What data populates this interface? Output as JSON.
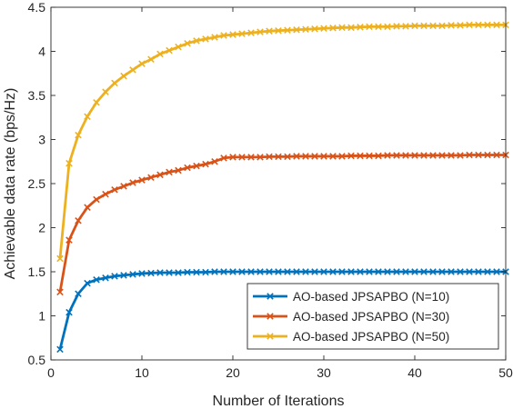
{
  "chart_data": {
    "type": "line",
    "title": "",
    "xlabel": "Number of Iterations",
    "ylabel": "Achievable data rate (bps/Hz)",
    "xlim": [
      0,
      50
    ],
    "ylim": [
      0.5,
      4.5
    ],
    "xticks": [
      0,
      10,
      20,
      30,
      40,
      50
    ],
    "yticks": [
      0.5,
      1,
      1.5,
      2,
      2.5,
      3,
      3.5,
      4,
      4.5
    ],
    "ytick_labels": [
      "0.5",
      "1",
      "1.5",
      "2",
      "2.5",
      "3",
      "3.5",
      "4",
      "4.5"
    ],
    "grid": false,
    "legend_position": "bottom-right",
    "marker": "x",
    "x": [
      1,
      2,
      3,
      4,
      5,
      6,
      7,
      8,
      9,
      10,
      11,
      12,
      13,
      14,
      15,
      16,
      17,
      18,
      19,
      20,
      21,
      22,
      23,
      24,
      25,
      26,
      27,
      28,
      29,
      30,
      31,
      32,
      33,
      34,
      35,
      36,
      37,
      38,
      39,
      40,
      41,
      42,
      43,
      44,
      45,
      46,
      47,
      48,
      49,
      50
    ],
    "series": [
      {
        "name": "AO-based JPSAPBO (N=10)",
        "color": "#0072BD",
        "values": [
          0.62,
          1.04,
          1.25,
          1.37,
          1.41,
          1.43,
          1.45,
          1.46,
          1.47,
          1.48,
          1.485,
          1.49,
          1.49,
          1.49,
          1.495,
          1.495,
          1.495,
          1.5,
          1.5,
          1.5,
          1.5,
          1.5,
          1.5,
          1.5,
          1.5,
          1.5,
          1.5,
          1.5,
          1.5,
          1.5,
          1.5,
          1.5,
          1.5,
          1.5,
          1.5,
          1.5,
          1.5,
          1.5,
          1.5,
          1.5,
          1.5,
          1.5,
          1.5,
          1.5,
          1.5,
          1.5,
          1.5,
          1.5,
          1.5,
          1.5
        ]
      },
      {
        "name": "AO-based JPSAPBO (N=30)",
        "color": "#D95319",
        "values": [
          1.27,
          1.86,
          2.08,
          2.23,
          2.32,
          2.38,
          2.43,
          2.47,
          2.51,
          2.54,
          2.57,
          2.6,
          2.63,
          2.65,
          2.68,
          2.7,
          2.72,
          2.75,
          2.79,
          2.8,
          2.8,
          2.8,
          2.8,
          2.805,
          2.805,
          2.805,
          2.81,
          2.81,
          2.81,
          2.81,
          2.81,
          2.81,
          2.815,
          2.815,
          2.815,
          2.815,
          2.82,
          2.82,
          2.82,
          2.82,
          2.82,
          2.82,
          2.82,
          2.82,
          2.82,
          2.825,
          2.825,
          2.825,
          2.825,
          2.825
        ]
      },
      {
        "name": "AO-based JPSAPBO (N=50)",
        "color": "#EDB120",
        "values": [
          1.65,
          2.73,
          3.05,
          3.26,
          3.42,
          3.54,
          3.64,
          3.72,
          3.79,
          3.86,
          3.91,
          3.97,
          4.01,
          4.05,
          4.09,
          4.12,
          4.14,
          4.16,
          4.18,
          4.19,
          4.2,
          4.21,
          4.22,
          4.23,
          4.235,
          4.24,
          4.245,
          4.25,
          4.255,
          4.26,
          4.265,
          4.27,
          4.27,
          4.275,
          4.28,
          4.28,
          4.28,
          4.285,
          4.285,
          4.29,
          4.29,
          4.29,
          4.29,
          4.295,
          4.295,
          4.3,
          4.3,
          4.3,
          4.3,
          4.3
        ]
      }
    ]
  }
}
